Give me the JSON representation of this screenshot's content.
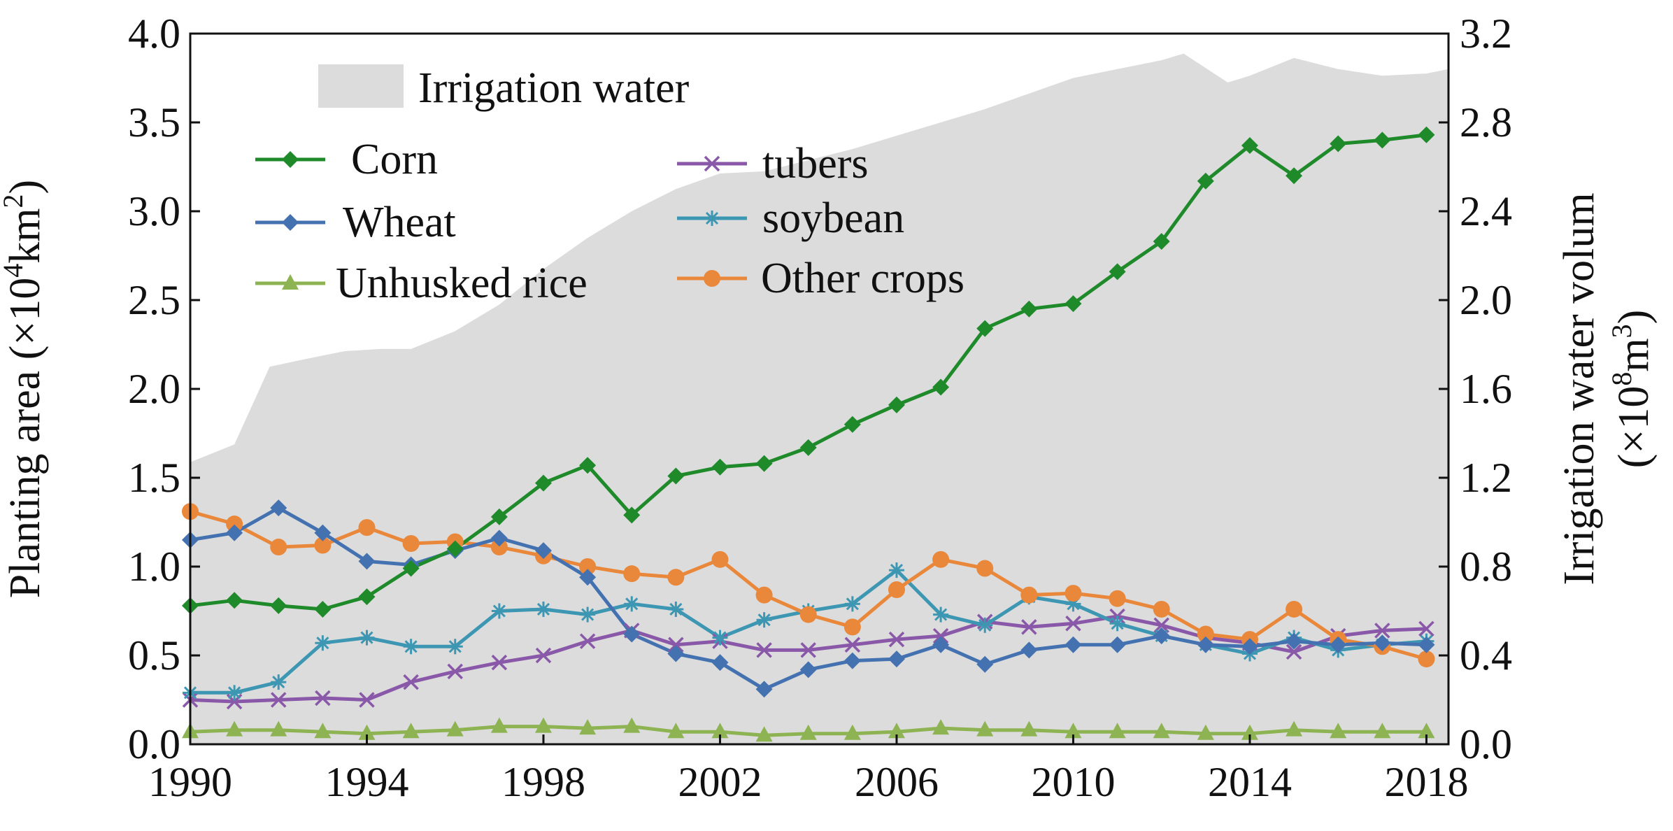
{
  "chart_data": {
    "type": "line",
    "title": "",
    "xlabel": "",
    "x": [
      1990,
      1991,
      1992,
      1993,
      1994,
      1995,
      1996,
      1997,
      1998,
      1999,
      2000,
      2001,
      2002,
      2003,
      2004,
      2005,
      2006,
      2007,
      2008,
      2009,
      2010,
      2011,
      2012,
      2013,
      2014,
      2015,
      2016,
      2017,
      2018
    ],
    "x_ticks": [
      1990,
      1994,
      1998,
      2002,
      2006,
      2010,
      2014,
      2018
    ],
    "x_tick_labels": [
      "1990",
      "1994",
      "1998",
      "2002",
      "2006",
      "2010",
      "2014",
      "2018"
    ],
    "xlim": [
      1990,
      2018.5
    ],
    "y_left": {
      "label_main": "Planting area (",
      "label_times": "×",
      "label_base": "10",
      "label_exp": "4",
      "label_unit": "km",
      "label_exp2": "2",
      "label_close": ")",
      "range": [
        0,
        4
      ],
      "ticks": [
        "0.0",
        "0.5",
        "1.0",
        "1.5",
        "2.0",
        "2.5",
        "3.0",
        "3.5",
        "4.0"
      ]
    },
    "y_right": {
      "label_line1": "Irrigation water volum",
      "label_open": "(",
      "label_times": "×",
      "label_base": "10",
      "label_exp": "8",
      "label_unit": "m",
      "label_exp2": "3",
      "label_close": ")",
      "range": [
        0,
        3.2
      ],
      "ticks": [
        "0.0",
        "0.4",
        "0.8",
        "1.2",
        "1.6",
        "2.0",
        "2.4",
        "2.8",
        "3.2"
      ]
    },
    "area_series": {
      "name": "Irrigation water",
      "color": "#dcdcdc",
      "axis": "right",
      "x": [
        1990,
        1991,
        1991.8,
        1992.5,
        1993.5,
        1994.3,
        1995,
        1996,
        1997,
        1998,
        1999,
        2000,
        2001,
        2002,
        2003,
        2004,
        2005,
        2006,
        2007,
        2008,
        2009,
        2010,
        2011,
        2012,
        2012.5,
        2013.5,
        2014,
        2015,
        2016,
        2017,
        2018,
        2018.5
      ],
      "values": [
        1.27,
        1.35,
        1.7,
        1.73,
        1.77,
        1.78,
        1.78,
        1.86,
        1.98,
        2.14,
        2.28,
        2.4,
        2.5,
        2.57,
        2.58,
        2.63,
        2.68,
        2.74,
        2.8,
        2.86,
        2.93,
        3.0,
        3.04,
        3.08,
        3.11,
        2.98,
        3.01,
        3.09,
        3.04,
        3.01,
        3.02,
        3.04
      ]
    },
    "series": [
      {
        "name": "Corn",
        "color": "#1e8a2a",
        "marker": "diamond",
        "values": [
          0.78,
          0.81,
          0.78,
          0.76,
          0.83,
          0.99,
          1.1,
          1.28,
          1.47,
          1.57,
          1.29,
          1.51,
          1.56,
          1.58,
          1.67,
          1.8,
          1.91,
          2.01,
          2.34,
          2.45,
          2.48,
          2.66,
          2.83,
          3.17,
          3.37,
          3.2,
          3.38,
          3.4,
          3.43
        ]
      },
      {
        "name": "Wheat",
        "color": "#4472b0",
        "marker": "diamond",
        "values": [
          1.15,
          1.19,
          1.33,
          1.19,
          1.03,
          1.01,
          1.09,
          1.16,
          1.09,
          0.94,
          0.62,
          0.51,
          0.46,
          0.31,
          0.42,
          0.47,
          0.48,
          0.56,
          0.45,
          0.53,
          0.56,
          0.56,
          0.61,
          0.56,
          0.55,
          0.58,
          0.56,
          0.57,
          0.56
        ]
      },
      {
        "name": "Unhusked rice",
        "color": "#8db353",
        "marker": "triangle",
        "values": [
          0.07,
          0.08,
          0.08,
          0.07,
          0.06,
          0.07,
          0.08,
          0.1,
          0.1,
          0.09,
          0.1,
          0.07,
          0.07,
          0.05,
          0.06,
          0.06,
          0.07,
          0.09,
          0.08,
          0.08,
          0.07,
          0.07,
          0.07,
          0.06,
          0.06,
          0.08,
          0.07,
          0.07,
          0.07
        ]
      },
      {
        "name": "tubers",
        "color": "#8a58a8",
        "marker": "x",
        "values": [
          0.25,
          0.24,
          0.25,
          0.26,
          0.25,
          0.35,
          0.41,
          0.46,
          0.5,
          0.58,
          0.64,
          0.56,
          0.58,
          0.53,
          0.53,
          0.56,
          0.59,
          0.61,
          0.69,
          0.66,
          0.68,
          0.72,
          0.67,
          0.6,
          0.57,
          0.52,
          0.61,
          0.64,
          0.65
        ]
      },
      {
        "name": "soybean",
        "color": "#3d97b3",
        "marker": "star",
        "values": [
          0.29,
          0.29,
          0.35,
          0.57,
          0.6,
          0.55,
          0.55,
          0.75,
          0.76,
          0.73,
          0.79,
          0.76,
          0.6,
          0.7,
          0.75,
          0.79,
          0.98,
          0.73,
          0.67,
          0.83,
          0.79,
          0.68,
          0.61,
          0.56,
          0.51,
          0.6,
          0.53,
          0.56,
          0.58
        ]
      },
      {
        "name": "Other crops",
        "color": "#e9873a",
        "marker": "circle",
        "values": [
          1.31,
          1.24,
          1.11,
          1.12,
          1.22,
          1.13,
          1.14,
          1.11,
          1.06,
          1.0,
          0.96,
          0.94,
          1.04,
          0.84,
          0.73,
          0.66,
          0.87,
          1.04,
          0.99,
          0.84,
          0.85,
          0.82,
          0.76,
          0.62,
          0.59,
          0.76,
          0.59,
          0.55,
          0.48
        ]
      }
    ],
    "legend": {
      "placement": "top-left",
      "area_label": "Irrigation water"
    },
    "grid": false
  }
}
